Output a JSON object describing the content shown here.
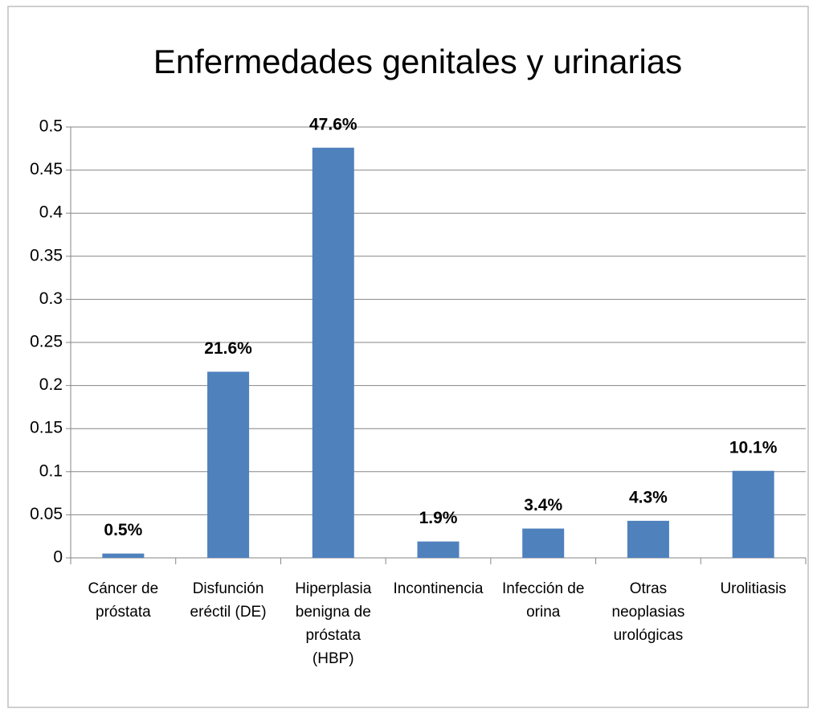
{
  "chart_data": {
    "type": "bar",
    "title": "Enfermedades genitales y urinarias",
    "categories": [
      "Cáncer de próstata",
      "Disfunción eréctil (DE)",
      "Hiperplasia benigna de próstata (HBP)",
      "Incontinencia",
      "Infección de orina",
      "Otras neoplasias urológicas",
      "Urolitiasis"
    ],
    "values": [
      0.005,
      0.216,
      0.476,
      0.019,
      0.034,
      0.043,
      0.101
    ],
    "value_labels": [
      "0.5%",
      "21.6%",
      "47.6%",
      "1.9%",
      "3.4%",
      "4.3%",
      "10.1%"
    ],
    "color": "#4f81bd",
    "ylim": [
      0,
      0.5
    ],
    "yticks": [
      0,
      0.05,
      0.1,
      0.15,
      0.2,
      0.25,
      0.3,
      0.35,
      0.4,
      0.45,
      0.5
    ],
    "grid": true
  }
}
